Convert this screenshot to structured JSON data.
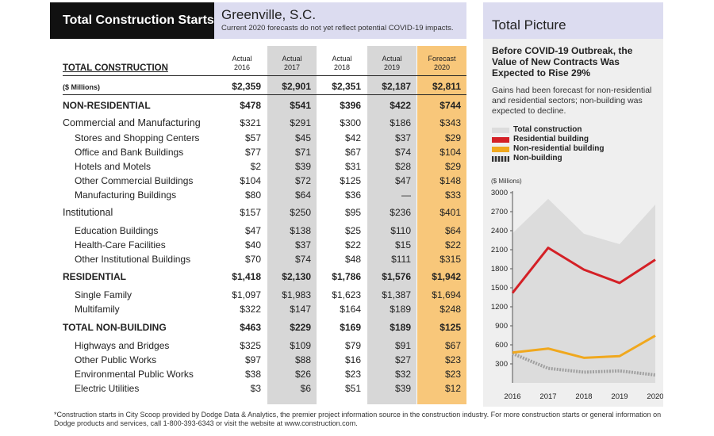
{
  "header": {
    "title": "Total Construction Starts",
    "city": "Greenville, S.C.",
    "note": "Current 2020 forecasts do not yet reflect potential COVID-19 impacts."
  },
  "columns": [
    {
      "line1": "Actual",
      "line2": "2016"
    },
    {
      "line1": "Actual",
      "line2": "2017"
    },
    {
      "line1": "Actual",
      "line2": "2018"
    },
    {
      "line1": "Actual",
      "line2": "2019"
    },
    {
      "line1": "Forecast",
      "line2": "2020"
    }
  ],
  "table": {
    "title": "TOTAL CONSTRUCTION",
    "units": "($ Millions)",
    "rows": [
      {
        "label": "",
        "values": [
          "$2,359",
          "$2,901",
          "$2,351",
          "$2,187",
          "$2,811"
        ]
      },
      {
        "label": "NON-RESIDENTIAL",
        "values": [
          "$478",
          "$541",
          "$396",
          "$422",
          "$744"
        ]
      },
      {
        "label": "Commercial and Manufacturing",
        "values": [
          "$321",
          "$291",
          "$300",
          "$186",
          "$343"
        ]
      },
      {
        "label": "Stores and Shopping Centers",
        "values": [
          "$57",
          "$45",
          "$42",
          "$37",
          "$29"
        ]
      },
      {
        "label": "Office and Bank Buildings",
        "values": [
          "$77",
          "$71",
          "$67",
          "$74",
          "$104"
        ]
      },
      {
        "label": "Hotels and Motels",
        "values": [
          "$2",
          "$39",
          "$31",
          "$28",
          "$29"
        ]
      },
      {
        "label": "Other Commercial Buildings",
        "values": [
          "$104",
          "$72",
          "$125",
          "$47",
          "$148"
        ]
      },
      {
        "label": "Manufacturing Buildings",
        "values": [
          "$80",
          "$64",
          "$36",
          "—",
          "$33"
        ]
      },
      {
        "label": "Institutional",
        "values": [
          "$157",
          "$250",
          "$95",
          "$236",
          "$401"
        ]
      },
      {
        "label": "Education Buildings",
        "values": [
          "$47",
          "$138",
          "$25",
          "$110",
          "$64"
        ]
      },
      {
        "label": "Health-Care Facilities",
        "values": [
          "$40",
          "$37",
          "$22",
          "$15",
          "$22"
        ]
      },
      {
        "label": "Other Institutional Buildings",
        "values": [
          "$70",
          "$74",
          "$48",
          "$111",
          "$315"
        ]
      },
      {
        "label": "RESIDENTIAL",
        "values": [
          "$1,418",
          "$2,130",
          "$1,786",
          "$1,576",
          "$1,942"
        ]
      },
      {
        "label": "Single Family",
        "values": [
          "$1,097",
          "$1,983",
          "$1,623",
          "$1,387",
          "$1,694"
        ]
      },
      {
        "label": "Multifamily",
        "values": [
          "$322",
          "$147",
          "$164",
          "$189",
          "$248"
        ]
      },
      {
        "label": "TOTAL NON-BUILDING",
        "values": [
          "$463",
          "$229",
          "$169",
          "$189",
          "$125"
        ]
      },
      {
        "label": "Highways and Bridges",
        "values": [
          "$325",
          "$109",
          "$79",
          "$91",
          "$67"
        ]
      },
      {
        "label": "Other Public Works",
        "values": [
          "$97",
          "$88",
          "$16",
          "$27",
          "$23"
        ]
      },
      {
        "label": "Environmental Public Works",
        "values": [
          "$38",
          "$26",
          "$23",
          "$32",
          "$23"
        ]
      },
      {
        "label": "Electric Utilities",
        "values": [
          "$3",
          "$6",
          "$51",
          "$39",
          "$12"
        ]
      }
    ]
  },
  "panel": {
    "title": "Total Picture",
    "heading": "Before COVID-19 Outbreak, the Value of New Contracts Was Expected to Rise 29%",
    "subtext": "Gains had been forecast for non-residential and residential sectors; non-building was expected to decline.",
    "units": "($ Millions)"
  },
  "footnote": "*Construction starts in City Scoop provided by Dodge Data & Analytics, the premier project information source in the construction industry. For more construction starts or general information on Dodge products and services, call 1-800-393-6343 or visit the website at www.construction.com.",
  "colors": {
    "total": "#dcdcdc",
    "residential": "#d42026",
    "nonresidential": "#f0a81e",
    "nonbuilding": "#a0a0a0",
    "forecast_bg": "#f8c77a",
    "shade_bg": "#d7d7d7"
  },
  "chart_data": {
    "type": "line",
    "x": [
      "2016",
      "2017",
      "2018",
      "2019",
      "2020"
    ],
    "ylim": [
      0,
      3000
    ],
    "yticks": [
      "3000",
      "2700",
      "2400",
      "2100",
      "1800",
      "1500",
      "1200",
      "900",
      "600",
      "300"
    ],
    "series": [
      {
        "name": "Total construction",
        "values": [
          2359,
          2901,
          2351,
          2187,
          2811
        ]
      },
      {
        "name": "Residential building",
        "values": [
          1418,
          2130,
          1786,
          1576,
          1942
        ]
      },
      {
        "name": "Non-residential building",
        "values": [
          478,
          541,
          396,
          422,
          744
        ]
      },
      {
        "name": "Non-building",
        "values": [
          463,
          229,
          169,
          189,
          125
        ]
      }
    ]
  }
}
